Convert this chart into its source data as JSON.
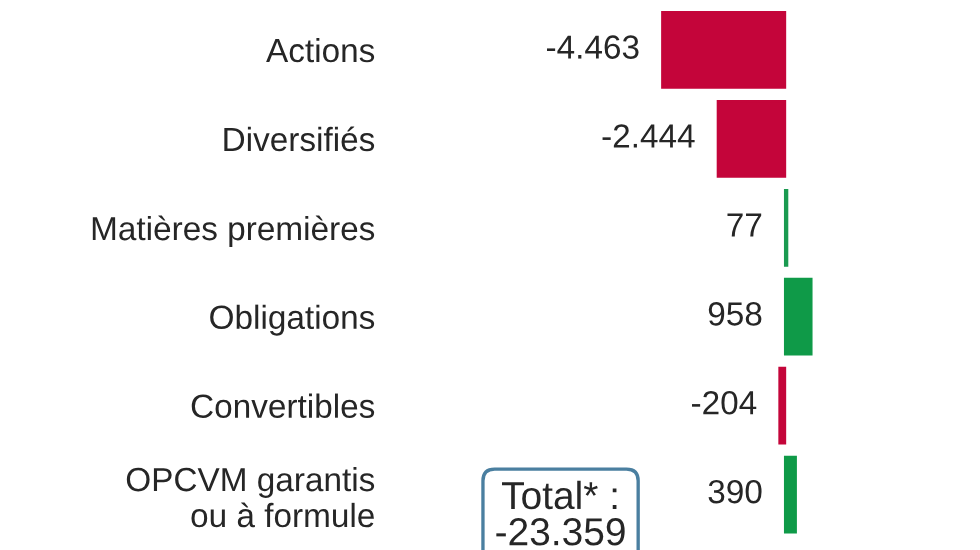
{
  "chart_data": {
    "type": "bar",
    "orientation": "horizontal",
    "categories": [
      "Actions",
      "Diversifiés",
      "Matières premières",
      "Obligations",
      "Convertibles",
      "OPCVM garantis\nou à formule"
    ],
    "values": [
      -4463,
      -2444,
      77,
      958,
      -204,
      390
    ],
    "colors": [
      "#c4053a",
      "#c4053a",
      "#1a9a50",
      "#0f9a48",
      "#c4053a",
      "#0f9a48"
    ],
    "value_labels": [
      "-4.463",
      "-2.444",
      "77",
      "958",
      "-204",
      "390"
    ],
    "grid": false,
    "legend": false,
    "annotations": [
      "Total* :\n-23.359"
    ]
  }
}
